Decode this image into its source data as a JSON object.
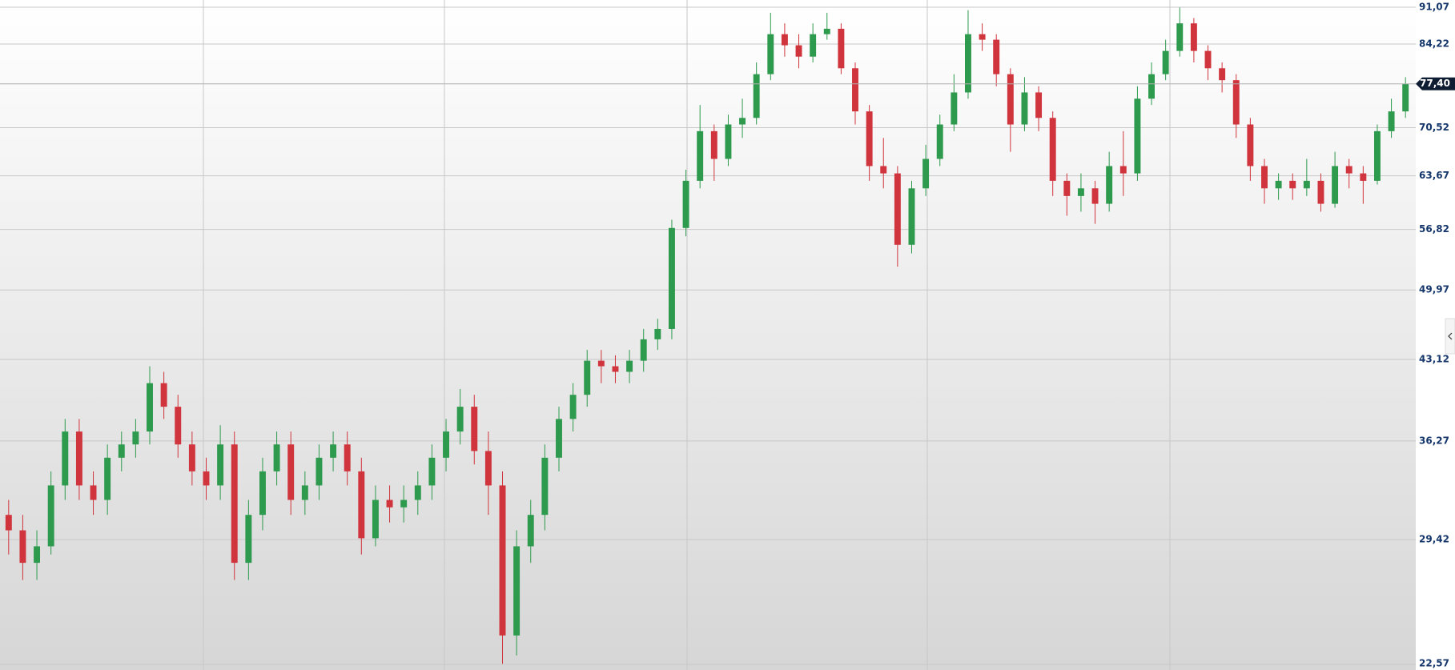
{
  "chart_data": {
    "type": "candlestick",
    "log": true,
    "grid": true,
    "up_color": "#2e9a4e",
    "down_color": "#d0343c",
    "ylim": [
      22.57,
      91.07
    ],
    "yticks": [
      {
        "value": 91.07,
        "label": "91,07"
      },
      {
        "value": 84.22,
        "label": "84,22"
      },
      {
        "value": 70.52,
        "label": "70,52"
      },
      {
        "value": 63.67,
        "label": "63,67"
      },
      {
        "value": 56.82,
        "label": "56,82"
      },
      {
        "value": 49.97,
        "label": "49,97"
      },
      {
        "value": 43.12,
        "label": "43,12"
      },
      {
        "value": 36.27,
        "label": "36,27"
      },
      {
        "value": 29.42,
        "label": "29,42"
      },
      {
        "value": 22.57,
        "label": "22,57"
      }
    ],
    "last_price": {
      "value": 77.4,
      "label": "77,40"
    },
    "open": [
      31,
      30,
      28,
      29,
      33,
      37,
      33,
      32,
      35,
      36,
      37,
      41,
      39,
      36,
      34,
      33,
      36,
      28,
      31,
      34,
      36,
      32,
      33,
      35,
      36,
      34,
      29.5,
      32,
      31.5,
      32,
      33,
      35,
      37,
      39,
      35.5,
      33,
      24,
      29,
      31,
      35,
      38,
      40,
      43,
      42.5,
      42,
      43,
      45,
      46,
      57,
      63,
      70,
      66,
      71,
      72,
      79,
      86,
      84,
      82,
      86,
      87,
      80,
      73,
      65,
      64,
      55,
      62,
      66,
      71,
      76,
      86,
      85,
      79,
      71,
      76,
      72,
      63,
      61,
      62,
      60,
      65,
      64,
      75,
      79,
      83,
      88,
      83,
      80,
      78,
      71,
      65,
      62,
      63,
      62,
      63,
      60,
      65,
      64,
      63,
      70,
      73
    ],
    "high": [
      32,
      31,
      30,
      34,
      38,
      38,
      34,
      36,
      37,
      38,
      42.5,
      42,
      40,
      37,
      35,
      37.5,
      37,
      32,
      35,
      37,
      37,
      34,
      36,
      37,
      37,
      35,
      33,
      33,
      33,
      34,
      36,
      38,
      40.5,
      40,
      37,
      34,
      30,
      32,
      36,
      39,
      41,
      44,
      44,
      43.5,
      44,
      46,
      47,
      58,
      64.5,
      74,
      71,
      72.5,
      75,
      81,
      90,
      88,
      86,
      88,
      90,
      88,
      81,
      74,
      69,
      65,
      63,
      68,
      72.5,
      79,
      90.5,
      88,
      86,
      80,
      78.5,
      77,
      73,
      64,
      64,
      63,
      67,
      70,
      77,
      81,
      85,
      91,
      89,
      84,
      81,
      79,
      72,
      66,
      64,
      64,
      66,
      64,
      67,
      66,
      65,
      71,
      75,
      78.5
    ],
    "low": [
      28.5,
      27,
      27,
      28.5,
      32,
      32,
      31,
      31,
      34,
      35,
      36,
      38,
      35,
      33,
      32,
      32,
      27,
      27,
      30,
      33,
      31,
      31,
      32,
      34,
      33,
      28.5,
      29,
      30.5,
      30.5,
      31,
      32,
      34,
      36,
      34.5,
      31,
      22.6,
      23,
      28,
      30,
      34,
      37,
      39,
      41,
      41,
      41,
      42,
      44,
      45,
      56,
      62,
      63,
      65,
      69,
      71,
      78,
      82,
      80,
      81,
      85,
      79,
      71,
      63,
      62,
      52.5,
      54,
      61,
      65,
      70,
      75,
      83,
      77,
      67,
      70,
      70,
      61,
      58.5,
      59,
      57.5,
      59,
      61,
      63,
      74,
      78,
      82,
      81,
      78,
      76,
      69,
      63,
      60,
      60.5,
      60.5,
      61,
      59,
      59.5,
      62,
      60,
      62.5,
      69,
      72
    ],
    "close": [
      30,
      28,
      29,
      33,
      37,
      33,
      32,
      35,
      36,
      37,
      41,
      39,
      36,
      34,
      33,
      36,
      28,
      31,
      34,
      36,
      32,
      33,
      35,
      36,
      34,
      29.5,
      32,
      31.5,
      32,
      33,
      35,
      37,
      39,
      35.5,
      33,
      24,
      29,
      31,
      35,
      38,
      40,
      43,
      42.5,
      42,
      43,
      45,
      46,
      57,
      63,
      70,
      66,
      71,
      72,
      79,
      86,
      84,
      82,
      86,
      87,
      80,
      73,
      65,
      64,
      55,
      62,
      66,
      71,
      76,
      86,
      85,
      79,
      71,
      76,
      72,
      63,
      61,
      62,
      60,
      65,
      64,
      75,
      79,
      83,
      88,
      83,
      80,
      78,
      71,
      65,
      62,
      63,
      62,
      63,
      60,
      65,
      64,
      63,
      70,
      73,
      77.4
    ]
  }
}
